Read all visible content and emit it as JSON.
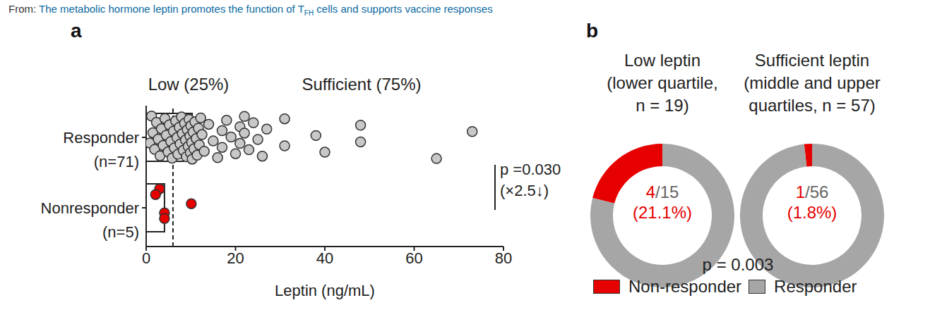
{
  "header": {
    "prefix": "From:",
    "link": "The metabolic hormone leptin promotes the function of T",
    "subscript": "FH",
    "link_end": " cells and supports vaccine responses"
  },
  "chart_data": [
    {
      "panel_label": "a",
      "type": "scatter",
      "orientation": "horizontal",
      "marker": "circle",
      "x_label": "Leptin (ng/mL)",
      "xlim": [
        0,
        80
      ],
      "xticks": [
        0,
        20,
        40,
        60,
        80
      ],
      "threshold": 6,
      "region_labels": {
        "low": "Low (25%)",
        "sufficient": "Sufficient (75%)"
      },
      "p_value_label": "p =0.030",
      "fold_label": "(×2.5↓)",
      "series": [
        {
          "name": "Responder",
          "n_label": "(n=71)",
          "color": "#c8c8c8",
          "median": 10.3,
          "values": [
            0.8,
            1.2,
            1.5,
            1.9,
            2.3,
            2.7,
            3.1,
            3.4,
            3.8,
            4.2,
            4.5,
            4.9,
            5.2,
            5.5,
            5.8,
            6.1,
            6.3,
            6.6,
            6.9,
            7.1,
            7.4,
            7.6,
            7.9,
            8.1,
            8.3,
            8.6,
            8.8,
            9,
            9.2,
            9.4,
            9.6,
            9.8,
            9.9,
            10,
            10.2,
            10.3,
            10.5,
            10.7,
            10.9,
            11.2,
            11.4,
            11.7,
            11.9,
            12.2,
            12.5,
            13,
            14,
            15,
            16,
            17,
            17,
            18,
            19,
            20,
            21,
            21,
            22,
            22,
            23,
            24,
            25,
            26,
            27,
            31,
            31,
            38,
            40,
            48,
            48,
            65,
            73
          ]
        },
        {
          "name": "Nonresponder",
          "n_label": "(n=5)",
          "color": "#e60000",
          "median": 4.1,
          "values": [
            4.1,
            3.0,
            10.1,
            4.1,
            2.1
          ]
        }
      ]
    },
    {
      "panel_label": "b",
      "type": "donut",
      "categories": [
        "Non-responder",
        "Responder"
      ],
      "colors": [
        "#e60000",
        "#a6a6a6"
      ],
      "legend": "bottom",
      "p_value_label": "p = 0.003",
      "pies": [
        {
          "title": [
            "Low leptin",
            "(lower quartile,",
            "n = 19)"
          ],
          "values": [
            4,
            15
          ],
          "center_text": "4/15",
          "percent_label": "(21.1%)"
        },
        {
          "title": [
            "Sufficient leptin",
            "(middle and upper",
            "quartiles, n = 57)"
          ],
          "values": [
            1,
            56
          ],
          "center_text": "1/56",
          "percent_label": "(1.8%)"
        }
      ]
    }
  ]
}
